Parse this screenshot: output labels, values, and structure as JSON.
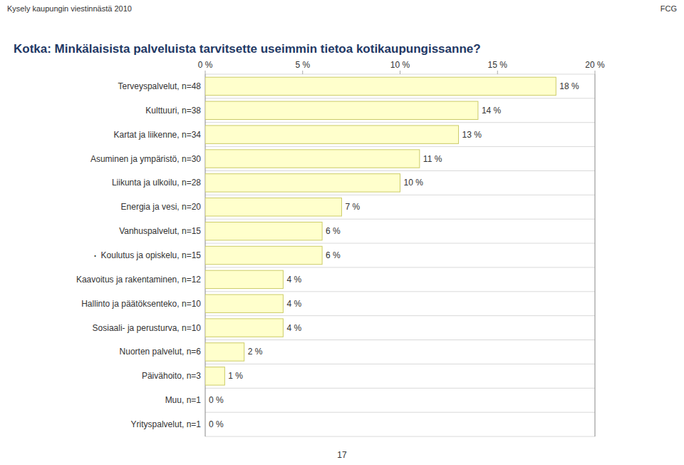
{
  "chart_data": {
    "type": "bar",
    "orientation": "horizontal",
    "title": "Kotka: Minkälaisista palveluista tarvitsette useimmin tietoa kotikaupungissanne?",
    "categories": [
      "Terveyspalvelut, n=48",
      "Kulttuuri, n=38",
      "Kartat ja liikenne, n=34",
      "Asuminen ja ympäristö, n=30",
      "Liikunta ja ulkoilu, n=28",
      "Energia ja vesi, n=20",
      "Vanhuspalvelut, n=15",
      "Koulutus ja opiskelu, n=15",
      "Kaavoitus ja rakentaminen, n=12",
      "Hallinto ja päätöksenteko, n=10",
      "Sosiaali- ja perusturva, n=10",
      "Nuorten palvelut, n=6",
      "Päivähoito, n=3",
      "Muu, n=1",
      "Yrityspalvelut, n=1"
    ],
    "values": [
      18,
      14,
      13,
      11,
      10,
      7,
      6,
      6,
      4,
      4,
      4,
      2,
      1,
      0,
      0
    ],
    "value_labels": [
      "18 %",
      "14 %",
      "13 %",
      "11 %",
      "10 %",
      "7 %",
      "6 %",
      "6 %",
      "4 %",
      "4 %",
      "4 %",
      "2 %",
      "1 %",
      "0 %",
      "0 %"
    ],
    "data_labels": true,
    "color": "#FFFFCC",
    "xlim": [
      0,
      20
    ],
    "xticks": [
      {
        "value": 0,
        "label": "0 %"
      },
      {
        "value": 5,
        "label": "5 %"
      },
      {
        "value": 10,
        "label": "10 %"
      },
      {
        "value": 15,
        "label": "15 %"
      },
      {
        "value": 20,
        "label": "20 %"
      }
    ],
    "grid": false,
    "annotations": [
      {
        "text": "Kysely kaupungin viestinnästä 2010"
      },
      {
        "text": "FCG"
      },
      {
        "text": "·",
        "category": "Koulutus ja opiskelu, n=15"
      },
      {
        "text": "17"
      }
    ]
  }
}
